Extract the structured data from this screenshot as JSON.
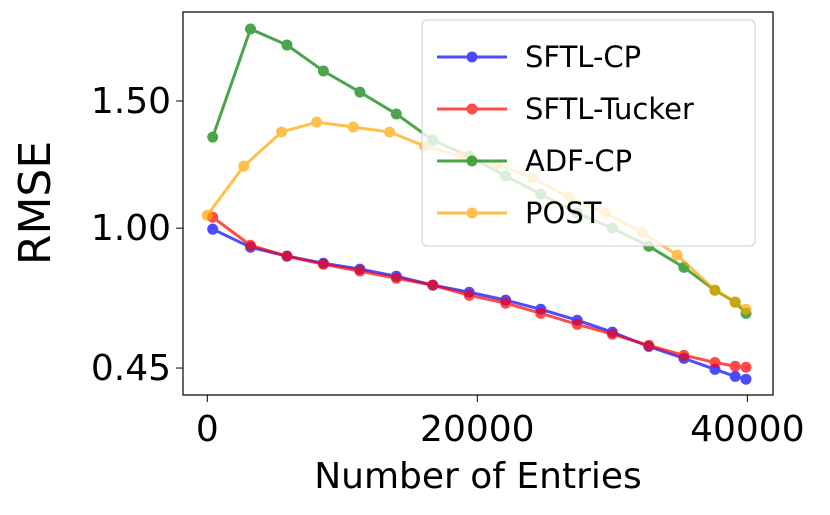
{
  "chart_data": {
    "type": "line",
    "xlabel": "Number of Entries",
    "ylabel": "RMSE",
    "xlim": [
      -1800,
      41900
    ],
    "xticks": [
      0,
      20000,
      40000
    ],
    "ylim": [
      0.344,
      1.85
    ],
    "yticks": [
      0.45,
      {
        "value": 1.0,
        "label": "1.00"
      },
      {
        "value": 1.5,
        "label": "1.50"
      }
    ],
    "legend": "upper right",
    "series": [
      {
        "name": "SFTL-CP",
        "color": "#0000ff",
        "x": [
          400,
          3200,
          5900,
          8600,
          11300,
          14000,
          16700,
          19400,
          22100,
          24700,
          27400,
          30000,
          32700,
          35300,
          37600,
          39100,
          39900
        ],
        "values": [
          0.996,
          0.925,
          0.89,
          0.862,
          0.839,
          0.811,
          0.776,
          0.748,
          0.717,
          0.681,
          0.638,
          0.591,
          0.535,
          0.488,
          0.445,
          0.417,
          0.406
        ]
      },
      {
        "name": "SFTL-Tucker",
        "color": "#ff0000",
        "x": [
          400,
          3200,
          5900,
          8600,
          11300,
          14000,
          16700,
          19400,
          22100,
          24700,
          27400,
          30000,
          32700,
          35300,
          37600,
          39100,
          39900
        ],
        "values": [
          1.043,
          0.933,
          0.89,
          0.858,
          0.831,
          0.803,
          0.776,
          0.736,
          0.705,
          0.665,
          0.622,
          0.583,
          0.539,
          0.5,
          0.472,
          0.457,
          0.453
        ]
      },
      {
        "name": "ADF-CP",
        "color": "#008000",
        "x": [
          400,
          3200,
          5900,
          8600,
          11300,
          14000,
          16700,
          19400,
          22100,
          24700,
          27400,
          30000,
          32700,
          35300,
          37600,
          39100,
          39900
        ],
        "values": [
          1.358,
          1.783,
          1.72,
          1.618,
          1.535,
          1.449,
          1.346,
          1.283,
          1.205,
          1.134,
          1.059,
          1.0,
          0.929,
          0.846,
          0.756,
          0.709,
          0.665
        ]
      },
      {
        "name": "POST",
        "color": "#ffa500",
        "x": [
          0,
          2700,
          5500,
          8100,
          10800,
          13500,
          16100,
          18800,
          21500,
          24100,
          26800,
          29500,
          32200,
          34800,
          37600,
          39100,
          39900
        ],
        "values": [
          1.051,
          1.244,
          1.378,
          1.417,
          1.398,
          1.378,
          1.323,
          1.283,
          1.252,
          1.197,
          1.122,
          1.059,
          0.984,
          0.894,
          0.756,
          0.709,
          0.681
        ]
      }
    ]
  }
}
